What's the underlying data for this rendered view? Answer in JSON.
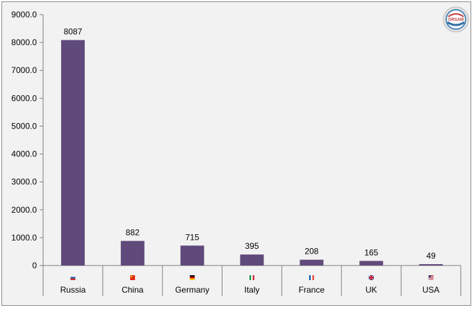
{
  "chart_data": {
    "type": "bar",
    "categories": [
      "Russia",
      "China",
      "Germany",
      "Italy",
      "France",
      "UK",
      "USA"
    ],
    "values": [
      8087,
      882,
      715,
      395,
      208,
      165,
      49
    ],
    "data_labels": [
      "8087",
      "882",
      "715",
      "395",
      "208",
      "165",
      "49"
    ],
    "ylim": [
      0,
      9000
    ],
    "yticks": [
      0,
      1000,
      2000,
      3000,
      4000,
      5000,
      6000,
      7000,
      8000,
      9000
    ],
    "ytick_labels": [
      "0",
      "1000.0",
      "2000.0",
      "3000.0",
      "4000.0",
      "5000.0",
      "6000.0",
      "7000.0",
      "8000.0",
      "9000.0"
    ],
    "bar_color": "#5f4a7b",
    "grid": false,
    "legend": "none",
    "title": "",
    "xlabel": "",
    "ylabel": ""
  },
  "flags": [
    "russia-flag-icon",
    "china-flag-icon",
    "germany-flag-icon",
    "italy-flag-icon",
    "france-flag-icon",
    "uk-flag-icon",
    "usa-flag-icon"
  ],
  "logo": {
    "text": "ORSAM"
  }
}
